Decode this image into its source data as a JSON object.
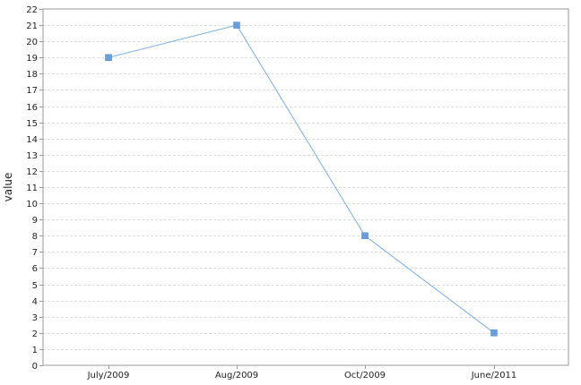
{
  "chart_data": {
    "type": "line",
    "categories": [
      "July/2009",
      "Aug/2009",
      "Oct/2009",
      "June/2011"
    ],
    "series": [
      {
        "values": [
          19,
          21,
          8,
          2
        ]
      }
    ],
    "title": "",
    "xlabel": "",
    "ylabel": "value",
    "ylim": [
      0,
      22
    ],
    "yticks": [
      0,
      1,
      2,
      3,
      4,
      5,
      6,
      7,
      8,
      9,
      10,
      11,
      12,
      13,
      14,
      15,
      16,
      17,
      18,
      19,
      20,
      21,
      22
    ],
    "grid": true,
    "legend": "none",
    "colors": {
      "line": "#7aaee3",
      "marker": "#6a9fdb",
      "grid": "#dddddd",
      "axis": "#999999"
    }
  }
}
